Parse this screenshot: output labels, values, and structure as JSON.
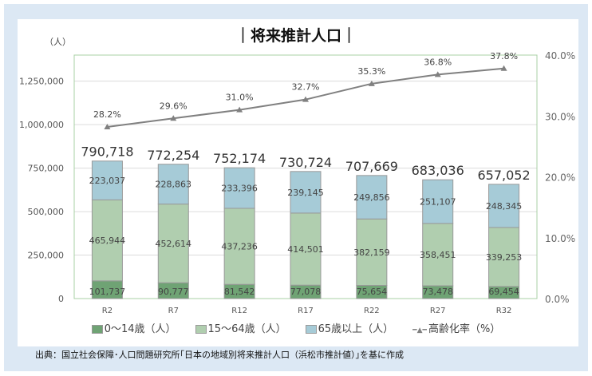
{
  "chart_data": {
    "type": "bar",
    "title": "｜将来推計人口｜",
    "ylabel": "（人）",
    "categories": [
      "R2",
      "R7",
      "R12",
      "R17",
      "R22",
      "R27",
      "R32"
    ],
    "series": [
      {
        "name": "0～14歳（人）",
        "color": "#6fa374",
        "values": [
          101737,
          90777,
          81542,
          77078,
          75654,
          73478,
          69454
        ]
      },
      {
        "name": "15～64歳（人）",
        "color": "#b0ceaf",
        "values": [
          465944,
          452614,
          437236,
          414501,
          382159,
          358451,
          339253
        ]
      },
      {
        "name": "65歳以上（人）",
        "color": "#a6cbd7",
        "values": [
          223037,
          228863,
          233396,
          239145,
          249856,
          251107,
          248345
        ]
      },
      {
        "name": "高齢化率（%）",
        "type": "line",
        "axis": "right",
        "color": "#808080",
        "values": [
          28.2,
          29.6,
          31.0,
          32.7,
          35.3,
          36.8,
          37.8
        ]
      }
    ],
    "totals": [
      790718,
      772254,
      752174,
      730724,
      707669,
      683036,
      657052
    ],
    "ylim": [
      0,
      1400000
    ],
    "yticks": [
      0,
      250000,
      500000,
      750000,
      1000000,
      1250000
    ],
    "ytick_labels": [
      "0",
      "250,000",
      "500,000",
      "750,000",
      "1,000,000",
      "1,250,000"
    ],
    "y2lim": [
      0,
      40
    ],
    "y2ticks": [
      0,
      10,
      20,
      30,
      40
    ],
    "y2tick_labels": [
      "0.0%",
      "10.0%",
      "20.0%",
      "30.0%",
      "40.0%"
    ],
    "grid": true,
    "legend": "bottom"
  },
  "source": "出典：国立社会保障･人口問題研究所｢日本の地域別将来推計人口（浜松市推計値）｣を基に作成"
}
